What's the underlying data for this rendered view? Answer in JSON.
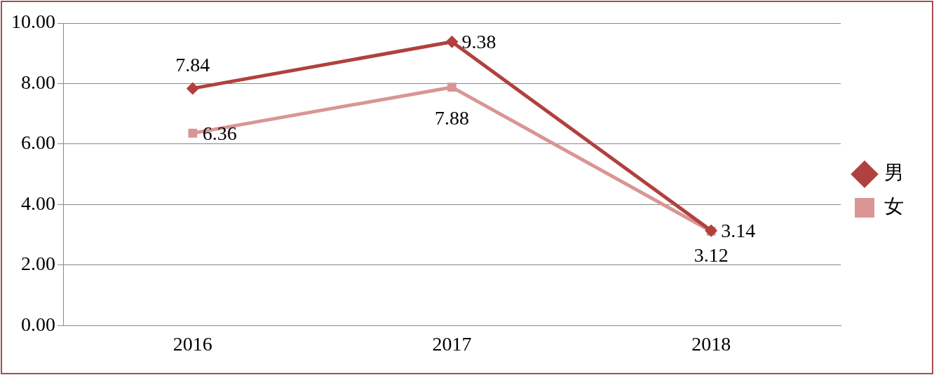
{
  "chart_data": {
    "type": "line",
    "categories": [
      "2016",
      "2017",
      "2018"
    ],
    "series": [
      {
        "name": "男",
        "color": "#b0413e",
        "values": [
          7.84,
          9.38,
          3.14
        ],
        "marker": "diamond"
      },
      {
        "name": "女",
        "color": "#d99694",
        "values": [
          6.36,
          7.88,
          3.12
        ],
        "marker": "square"
      }
    ],
    "ylim": [
      0,
      10
    ],
    "yticks": [
      {
        "value": 0,
        "label": "0.00"
      },
      {
        "value": 2,
        "label": "2.00"
      },
      {
        "value": 4,
        "label": "4.00"
      },
      {
        "value": 6,
        "label": "6.00"
      },
      {
        "value": 8,
        "label": "8.00"
      },
      {
        "value": 10,
        "label": "10.00"
      }
    ],
    "grid": "y",
    "legend": "right",
    "data_labels": true
  }
}
